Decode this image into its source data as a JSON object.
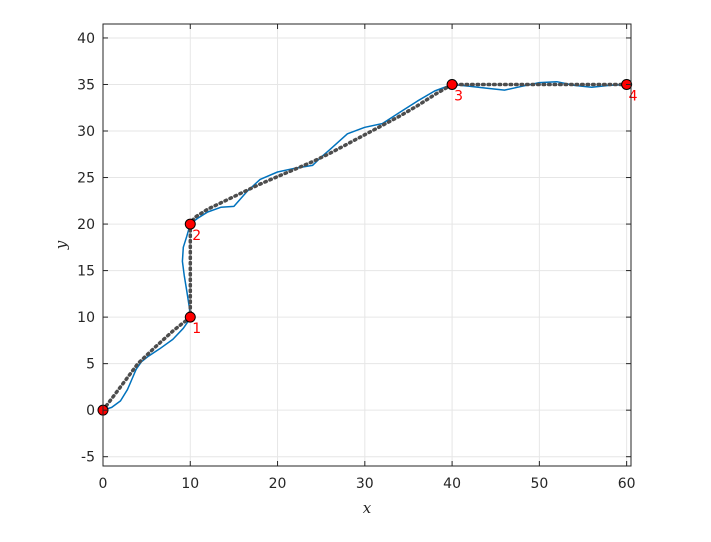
{
  "chart_data": {
    "type": "line",
    "title": "",
    "xlabel": "x",
    "ylabel": "y",
    "xlim": [
      0,
      60.5
    ],
    "ylim": [
      -6,
      41.5
    ],
    "xticks": [
      0,
      10,
      20,
      30,
      40,
      50,
      60
    ],
    "yticks": [
      -5,
      0,
      5,
      10,
      15,
      20,
      25,
      30,
      35,
      40
    ],
    "grid": true,
    "legend": "none",
    "series": [
      {
        "color": "#0072bd",
        "style": "solid",
        "x": [
          0,
          1,
          2,
          2.8,
          3.3,
          3.8,
          4.4,
          5.2,
          6.5,
          8,
          9.2,
          9.8,
          10,
          9.9,
          9.6,
          9.3,
          9.1,
          9.2,
          9.6,
          10,
          10.8,
          12,
          13.5,
          15,
          16.5,
          18,
          20,
          22,
          24,
          25,
          26,
          28,
          30,
          32,
          34,
          36,
          38,
          40,
          42,
          44,
          46,
          48,
          50,
          52,
          54,
          56,
          58,
          60
        ],
        "y": [
          0,
          0.3,
          1,
          2.2,
          3.3,
          4.4,
          5.2,
          5.8,
          6.6,
          7.6,
          8.8,
          9.6,
          10,
          11,
          12.8,
          14.5,
          16,
          17.5,
          18.7,
          20,
          20.6,
          21.3,
          21.8,
          21.9,
          23.5,
          24.8,
          25.6,
          26,
          26.3,
          27.2,
          28,
          29.7,
          30.4,
          30.8,
          32,
          33.2,
          34.3,
          35,
          34.8,
          34.6,
          34.4,
          34.8,
          35.2,
          35.3,
          34.9,
          34.7,
          34.9,
          35
        ]
      },
      {
        "color": "#4d4d4d",
        "style": "dotted",
        "x": [
          0,
          2,
          4,
          6,
          8,
          9.2,
          9.8,
          10,
          10,
          10,
          10,
          10.5,
          12,
          14,
          16,
          18,
          20,
          22,
          24,
          26,
          28,
          30,
          32,
          34,
          36,
          38,
          40,
          45,
          50,
          55,
          60
        ],
        "y": [
          0,
          2.5,
          5,
          6.8,
          8.5,
          9.4,
          9.8,
          10,
          13,
          16.5,
          20,
          20.7,
          21.6,
          22.5,
          23.4,
          24.3,
          25.1,
          25.9,
          26.7,
          27.6,
          28.6,
          29.6,
          30.6,
          31.6,
          32.7,
          33.9,
          35,
          35,
          35,
          35,
          35
        ]
      }
    ],
    "waypoints": {
      "color": "#ff0000",
      "x": [
        0,
        10,
        10,
        40,
        60
      ],
      "y": [
        0,
        10,
        20,
        35,
        35
      ],
      "labels": [
        "",
        "1",
        "2",
        "3",
        "4"
      ]
    }
  }
}
